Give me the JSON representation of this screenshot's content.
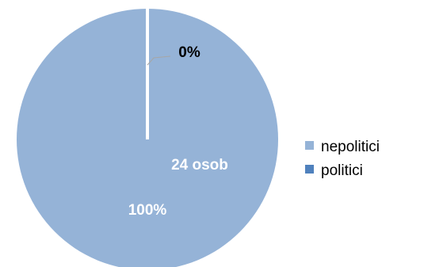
{
  "chart_data": {
    "type": "pie",
    "title": "",
    "series": [
      {
        "name": "",
        "categories": [
          "nepolitici",
          "politici"
        ],
        "values": [
          24,
          0
        ],
        "percent_labels": [
          "100%",
          "0%"
        ],
        "count_labels": [
          "24 osob",
          ""
        ],
        "colors": [
          "#95B3D7",
          "#4F81BD"
        ]
      }
    ],
    "legend": {
      "placement": "right",
      "entries": [
        {
          "label": "nepolitici",
          "color": "#95B3D7"
        },
        {
          "label": "politici",
          "color": "#4F81BD"
        }
      ]
    }
  }
}
